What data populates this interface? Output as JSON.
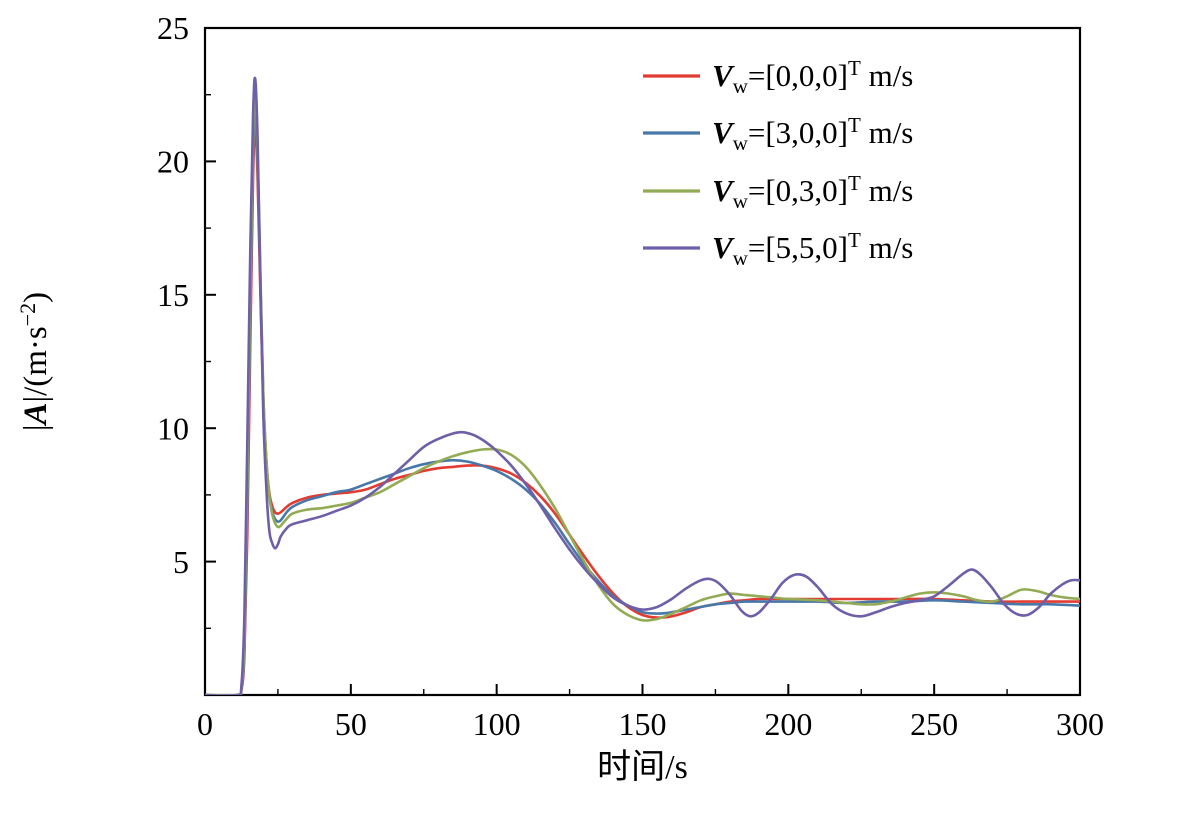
{
  "figure": {
    "background": "#ffffff"
  },
  "chart_data": {
    "type": "line",
    "title": "",
    "xlabel": "时间/s",
    "ylabel": "|A|/(m·s−2)",
    "ylabel_rich": [
      {
        "t": "|"
      },
      {
        "t": "A",
        "bold": true,
        "italic": true
      },
      {
        "t": "|/(m·s"
      },
      {
        "t": "−2",
        "sup": true
      },
      {
        "t": ")"
      }
    ],
    "xlim": [
      0,
      300
    ],
    "ylim": [
      0,
      25
    ],
    "xticks": [
      0,
      50,
      100,
      150,
      200,
      250,
      300
    ],
    "yticks": [
      5,
      10,
      15,
      20,
      25
    ],
    "x_minor_step": 25,
    "y_minor_step": 2.5,
    "grid": false,
    "legend_position": "top-right-inside",
    "axis_color": "#000000",
    "series": [
      {
        "name": "Vw=[0,0,0]T m/s",
        "legend": {
          "pre": "V",
          "sub": "w",
          "eq": "=[0,0,0]",
          "sup": "T",
          "post": " m/s"
        },
        "color": "#e23b32",
        "points": [
          [
            0,
            0
          ],
          [
            11,
            0
          ],
          [
            12.5,
            0.2
          ],
          [
            13.5,
            1.5
          ],
          [
            14.5,
            6
          ],
          [
            15.5,
            13
          ],
          [
            16.5,
            19.5
          ],
          [
            17.2,
            21.3
          ],
          [
            18,
            19.5
          ],
          [
            19,
            15
          ],
          [
            20,
            11
          ],
          [
            21,
            8.8
          ],
          [
            22,
            7.6
          ],
          [
            23,
            7.1
          ],
          [
            24,
            6.85
          ],
          [
            25,
            6.8
          ],
          [
            26,
            6.85
          ],
          [
            28,
            7.05
          ],
          [
            30,
            7.2
          ],
          [
            35,
            7.4
          ],
          [
            40,
            7.5
          ],
          [
            45,
            7.55
          ],
          [
            50,
            7.6
          ],
          [
            55,
            7.7
          ],
          [
            60,
            7.9
          ],
          [
            65,
            8.1
          ],
          [
            70,
            8.25
          ],
          [
            75,
            8.4
          ],
          [
            80,
            8.5
          ],
          [
            85,
            8.55
          ],
          [
            90,
            8.6
          ],
          [
            95,
            8.6
          ],
          [
            100,
            8.5
          ],
          [
            105,
            8.3
          ],
          [
            110,
            7.95
          ],
          [
            115,
            7.45
          ],
          [
            120,
            6.8
          ],
          [
            125,
            6.0
          ],
          [
            130,
            5.2
          ],
          [
            135,
            4.45
          ],
          [
            140,
            3.8
          ],
          [
            145,
            3.3
          ],
          [
            150,
            3.0
          ],
          [
            155,
            2.9
          ],
          [
            160,
            2.95
          ],
          [
            165,
            3.1
          ],
          [
            170,
            3.3
          ],
          [
            175,
            3.4
          ],
          [
            180,
            3.5
          ],
          [
            185,
            3.55
          ],
          [
            190,
            3.6
          ],
          [
            200,
            3.6
          ],
          [
            210,
            3.6
          ],
          [
            220,
            3.6
          ],
          [
            230,
            3.6
          ],
          [
            240,
            3.6
          ],
          [
            250,
            3.6
          ],
          [
            260,
            3.55
          ],
          [
            270,
            3.5
          ],
          [
            280,
            3.5
          ],
          [
            290,
            3.5
          ],
          [
            300,
            3.5
          ]
        ]
      },
      {
        "name": "Vw=[3,0,0]T m/s",
        "legend": {
          "pre": "V",
          "sub": "w",
          "eq": "=[3,0,0]",
          "sup": "T",
          "post": " m/s"
        },
        "color": "#4878a8",
        "points": [
          [
            0,
            0
          ],
          [
            11,
            0
          ],
          [
            12.5,
            0.25
          ],
          [
            13.5,
            1.8
          ],
          [
            14.5,
            7
          ],
          [
            15.5,
            14
          ],
          [
            16.5,
            20.3
          ],
          [
            17.2,
            21.9
          ],
          [
            18,
            20
          ],
          [
            19,
            15.5
          ],
          [
            20,
            11.2
          ],
          [
            21,
            8.8
          ],
          [
            22,
            7.5
          ],
          [
            23,
            6.9
          ],
          [
            24,
            6.6
          ],
          [
            25,
            6.5
          ],
          [
            26,
            6.55
          ],
          [
            28,
            6.85
          ],
          [
            30,
            7.05
          ],
          [
            35,
            7.3
          ],
          [
            40,
            7.45
          ],
          [
            45,
            7.6
          ],
          [
            50,
            7.7
          ],
          [
            55,
            7.9
          ],
          [
            60,
            8.1
          ],
          [
            65,
            8.3
          ],
          [
            70,
            8.5
          ],
          [
            75,
            8.65
          ],
          [
            80,
            8.75
          ],
          [
            85,
            8.8
          ],
          [
            90,
            8.75
          ],
          [
            95,
            8.6
          ],
          [
            100,
            8.4
          ],
          [
            105,
            8.1
          ],
          [
            110,
            7.7
          ],
          [
            115,
            7.15
          ],
          [
            120,
            6.45
          ],
          [
            125,
            5.65
          ],
          [
            130,
            4.9
          ],
          [
            135,
            4.25
          ],
          [
            140,
            3.7
          ],
          [
            145,
            3.35
          ],
          [
            150,
            3.1
          ],
          [
            155,
            3.05
          ],
          [
            160,
            3.1
          ],
          [
            165,
            3.2
          ],
          [
            170,
            3.3
          ],
          [
            175,
            3.4
          ],
          [
            180,
            3.45
          ],
          [
            185,
            3.5
          ],
          [
            190,
            3.5
          ],
          [
            200,
            3.5
          ],
          [
            210,
            3.5
          ],
          [
            220,
            3.45
          ],
          [
            230,
            3.5
          ],
          [
            240,
            3.5
          ],
          [
            250,
            3.55
          ],
          [
            260,
            3.5
          ],
          [
            270,
            3.45
          ],
          [
            280,
            3.4
          ],
          [
            290,
            3.4
          ],
          [
            300,
            3.35
          ]
        ]
      },
      {
        "name": "Vw=[0,3,0]T m/s",
        "legend": {
          "pre": "V",
          "sub": "w",
          "eq": "=[0,3,0]",
          "sup": "T",
          "post": " m/s"
        },
        "color": "#94ab55",
        "points": [
          [
            0,
            0
          ],
          [
            11,
            0
          ],
          [
            12.5,
            0.3
          ],
          [
            13.5,
            2.2
          ],
          [
            14.5,
            8
          ],
          [
            15.5,
            15
          ],
          [
            16.5,
            21
          ],
          [
            17.2,
            22.6
          ],
          [
            18,
            20.5
          ],
          [
            19,
            15.8
          ],
          [
            20,
            11.3
          ],
          [
            21,
            8.9
          ],
          [
            22,
            7.5
          ],
          [
            23,
            6.8
          ],
          [
            24,
            6.45
          ],
          [
            25,
            6.3
          ],
          [
            26,
            6.35
          ],
          [
            28,
            6.6
          ],
          [
            30,
            6.8
          ],
          [
            35,
            6.95
          ],
          [
            40,
            7.0
          ],
          [
            45,
            7.1
          ],
          [
            50,
            7.2
          ],
          [
            55,
            7.4
          ],
          [
            60,
            7.6
          ],
          [
            65,
            7.9
          ],
          [
            70,
            8.2
          ],
          [
            75,
            8.5
          ],
          [
            80,
            8.75
          ],
          [
            85,
            8.95
          ],
          [
            90,
            9.1
          ],
          [
            95,
            9.2
          ],
          [
            100,
            9.2
          ],
          [
            105,
            9.0
          ],
          [
            110,
            8.55
          ],
          [
            115,
            7.85
          ],
          [
            120,
            7.0
          ],
          [
            125,
            6.0
          ],
          [
            130,
            5.0
          ],
          [
            135,
            4.1
          ],
          [
            140,
            3.4
          ],
          [
            145,
            3.0
          ],
          [
            150,
            2.8
          ],
          [
            155,
            2.85
          ],
          [
            160,
            3.05
          ],
          [
            165,
            3.3
          ],
          [
            170,
            3.55
          ],
          [
            175,
            3.7
          ],
          [
            180,
            3.8
          ],
          [
            185,
            3.75
          ],
          [
            190,
            3.7
          ],
          [
            195,
            3.65
          ],
          [
            200,
            3.6
          ],
          [
            210,
            3.55
          ],
          [
            220,
            3.45
          ],
          [
            225,
            3.4
          ],
          [
            230,
            3.4
          ],
          [
            235,
            3.5
          ],
          [
            240,
            3.65
          ],
          [
            245,
            3.8
          ],
          [
            250,
            3.85
          ],
          [
            255,
            3.8
          ],
          [
            260,
            3.7
          ],
          [
            265,
            3.55
          ],
          [
            270,
            3.5
          ],
          [
            275,
            3.7
          ],
          [
            280,
            3.95
          ],
          [
            285,
            3.9
          ],
          [
            290,
            3.75
          ],
          [
            295,
            3.65
          ],
          [
            300,
            3.6
          ]
        ]
      },
      {
        "name": "Vw=[5,5,0]T m/s",
        "legend": {
          "pre": "V",
          "sub": "w",
          "eq": "=[5,5,0]",
          "sup": "T",
          "post": " m/s"
        },
        "color": "#6f5ea8",
        "points": [
          [
            0,
            0
          ],
          [
            11,
            0
          ],
          [
            12.5,
            0.4
          ],
          [
            13.5,
            3
          ],
          [
            14.5,
            9.5
          ],
          [
            15.5,
            16.5
          ],
          [
            16.5,
            21.8
          ],
          [
            17.2,
            23.1
          ],
          [
            18,
            21
          ],
          [
            19,
            15.5
          ],
          [
            20,
            10.5
          ],
          [
            21,
            7.8
          ],
          [
            22,
            6.2
          ],
          [
            23,
            5.7
          ],
          [
            24,
            5.5
          ],
          [
            25,
            5.65
          ],
          [
            26,
            5.95
          ],
          [
            28,
            6.25
          ],
          [
            30,
            6.4
          ],
          [
            35,
            6.55
          ],
          [
            40,
            6.7
          ],
          [
            45,
            6.9
          ],
          [
            50,
            7.1
          ],
          [
            55,
            7.4
          ],
          [
            60,
            7.8
          ],
          [
            65,
            8.3
          ],
          [
            70,
            8.8
          ],
          [
            75,
            9.3
          ],
          [
            80,
            9.6
          ],
          [
            85,
            9.8
          ],
          [
            88,
            9.85
          ],
          [
            92,
            9.75
          ],
          [
            96,
            9.5
          ],
          [
            100,
            9.15
          ],
          [
            105,
            8.6
          ],
          [
            110,
            7.9
          ],
          [
            115,
            7.1
          ],
          [
            120,
            6.25
          ],
          [
            125,
            5.45
          ],
          [
            130,
            4.75
          ],
          [
            135,
            4.15
          ],
          [
            140,
            3.65
          ],
          [
            145,
            3.35
          ],
          [
            150,
            3.2
          ],
          [
            155,
            3.3
          ],
          [
            160,
            3.6
          ],
          [
            165,
            4.0
          ],
          [
            170,
            4.3
          ],
          [
            173,
            4.35
          ],
          [
            176,
            4.2
          ],
          [
            180,
            3.75
          ],
          [
            184,
            3.15
          ],
          [
            187,
            2.95
          ],
          [
            190,
            3.1
          ],
          [
            194,
            3.6
          ],
          [
            198,
            4.2
          ],
          [
            202,
            4.5
          ],
          [
            206,
            4.45
          ],
          [
            210,
            4.05
          ],
          [
            215,
            3.4
          ],
          [
            220,
            3.05
          ],
          [
            225,
            2.95
          ],
          [
            230,
            3.1
          ],
          [
            235,
            3.3
          ],
          [
            240,
            3.45
          ],
          [
            245,
            3.55
          ],
          [
            250,
            3.7
          ],
          [
            255,
            4.1
          ],
          [
            260,
            4.55
          ],
          [
            263,
            4.7
          ],
          [
            266,
            4.5
          ],
          [
            270,
            4.0
          ],
          [
            274,
            3.4
          ],
          [
            278,
            3.05
          ],
          [
            282,
            3.0
          ],
          [
            286,
            3.3
          ],
          [
            290,
            3.8
          ],
          [
            294,
            4.15
          ],
          [
            297,
            4.3
          ],
          [
            300,
            4.3
          ]
        ]
      }
    ]
  }
}
